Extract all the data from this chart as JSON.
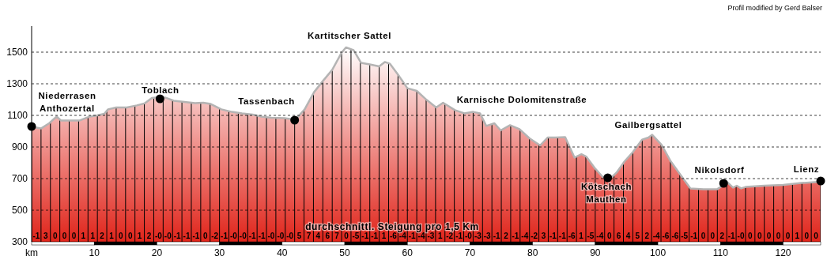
{
  "chart_data": {
    "type": "area",
    "xlim": [
      0,
      126
    ],
    "ylim": [
      300,
      1665
    ],
    "xticks": [
      {
        "value": 0,
        "label": "km"
      },
      10,
      20,
      30,
      40,
      50,
      60,
      70,
      80,
      90,
      100,
      110,
      120
    ],
    "yticks": [
      300,
      500,
      700,
      900,
      1100,
      1300,
      1500
    ],
    "grid": "y",
    "line_style": "dashed",
    "series": [
      {
        "color": "#e0241a",
        "x": [
          0,
          1.5,
          2.8,
          4,
          4.7,
          6.1,
          7.6,
          9.3,
          10.5,
          11.6,
          12.2,
          13.5,
          15.2,
          16.8,
          18.1,
          19.2,
          19.8,
          20.4,
          21.3,
          22.7,
          24.4,
          26.1,
          27.4,
          28.6,
          30.3,
          32,
          33.6,
          35.3,
          36.6,
          38.3,
          40.4,
          42.1,
          43.6,
          45.1,
          46.5,
          48,
          49.5,
          50.2,
          51.4,
          52.6,
          54,
          55.5,
          56.4,
          57.2,
          58.7,
          60,
          61.5,
          63.1,
          64.6,
          65.7,
          67.6,
          69.1,
          70.5,
          71.6,
          72.6,
          73.9,
          74.9,
          76.4,
          77.9,
          79.5,
          81.2,
          82.4,
          83.7,
          85.2,
          86.7,
          87.8,
          88.6,
          90,
          91.2,
          92.4,
          93.4,
          94.7,
          96,
          97.5,
          98.5,
          99.1,
          100.6,
          102,
          103.5,
          105.2,
          107.3,
          109.5,
          111.1,
          112,
          112.6,
          113.3,
          114,
          117,
          120,
          122.9,
          126
        ],
        "values": [
          1027,
          1017,
          1050,
          1093,
          1067,
          1067,
          1067,
          1093,
          1100,
          1110,
          1138,
          1150,
          1150,
          1163,
          1177,
          1210,
          1213,
          1205,
          1213,
          1193,
          1185,
          1177,
          1180,
          1172,
          1138,
          1122,
          1113,
          1105,
          1093,
          1085,
          1083,
          1072,
          1138,
          1247,
          1317,
          1388,
          1497,
          1530,
          1513,
          1433,
          1422,
          1410,
          1438,
          1427,
          1347,
          1272,
          1255,
          1197,
          1150,
          1180,
          1133,
          1113,
          1122,
          1113,
          1033,
          1050,
          1005,
          1038,
          1013,
          955,
          910,
          960,
          960,
          963,
          833,
          855,
          838,
          763,
          710,
          700,
          738,
          810,
          867,
          947,
          960,
          977,
          913,
          813,
          730,
          638,
          633,
          633,
          677,
          643,
          655,
          638,
          647,
          655,
          660,
          672,
          680
        ]
      },
      {
        "type": "scatter",
        "color": "#000000",
        "marker": "circle",
        "x": [
          0,
          20.5,
          42,
          92,
          110.5,
          126
        ],
        "values": [
          1030,
          1205,
          1070,
          705,
          670,
          685
        ]
      }
    ],
    "annotations": [
      "Profil modified by Gerd Balser",
      "Niederrasen\nAnthozertal",
      "Toblach",
      "Tassenbach",
      "Kartitscher Sattel",
      "Karnische Dolomitenstraße",
      "Gailbergsattel",
      "Kötschach\nMauthen",
      "Nikolsdorf",
      "Lienz",
      "durchschnittl. Steigung pro 1,5 Km",
      "-1",
      "3",
      "0",
      "0",
      "0",
      "1",
      "1",
      "2",
      "1",
      "0",
      "0",
      "1",
      "2",
      "-0",
      "-0",
      "-1",
      "-1",
      "-1",
      "0",
      "-2",
      "-1",
      "-0",
      "-0",
      "-1",
      "-1",
      "-0",
      "-0",
      "-0",
      "5",
      "7",
      "4",
      "6",
      "7",
      "0",
      "-5",
      "-1",
      "-1",
      "1",
      "-6",
      "-4",
      "-1",
      "-4",
      "-3",
      "1",
      "-2",
      "-1",
      "-0",
      "-3",
      "-3",
      "-1",
      "2",
      "-1",
      "-4",
      "-2",
      "3",
      "-1",
      "-1",
      "-6",
      "1",
      "-5",
      "-4",
      "0",
      "6",
      "4",
      "5",
      "2",
      "-4",
      "-6",
      "-6",
      "-5",
      "-1",
      "0",
      "0",
      "2",
      "-1",
      "-0",
      "0",
      "0",
      "0",
      "0",
      "0",
      "1",
      "0",
      "0"
    ]
  }
}
